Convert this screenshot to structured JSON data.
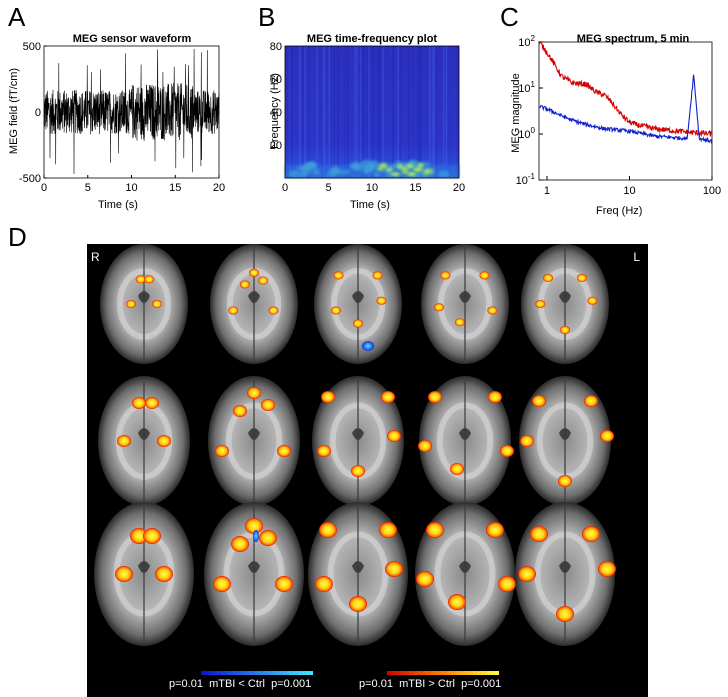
{
  "panels": {
    "A": {
      "letter": "A",
      "title": "MEG sensor waveform",
      "xlabel": "Time (s)",
      "ylabel": "MEG field (fT/cm)"
    },
    "B": {
      "letter": "B",
      "title": "MEG time-frequency plot",
      "xlabel": "Time (s)",
      "ylabel": "Frequency (Hz)"
    },
    "C": {
      "letter": "C",
      "title": "MEG spectrum, 5 min",
      "xlabel": "Freq (Hz)",
      "ylabel": "MEG magnitude"
    },
    "D": {
      "letter": "D",
      "side_right": "R",
      "side_left": "L",
      "colorbar_neg": {
        "p_low": "p=0.01",
        "label": "mTBI < Ctrl",
        "p_high": "p=0.001"
      },
      "colorbar_pos": {
        "p_low": "p=0.01",
        "label": "mTBI > Ctrl",
        "p_high": "p=0.001"
      }
    }
  },
  "chart_data": [
    {
      "type": "line",
      "title": "MEG sensor waveform",
      "xlabel": "Time (s)",
      "ylabel": "MEG field (fT/cm)",
      "xlim": [
        0,
        20
      ],
      "ylim": [
        -500,
        500
      ],
      "xticks": [
        "0",
        "5",
        "10",
        "15",
        "20"
      ],
      "yticks": [
        "-500",
        "0",
        "500"
      ],
      "series": [
        {
          "amplitude_typical": 200,
          "peak_max": 480,
          "peak_min": -470
        }
      ]
    },
    {
      "type": "heatmap",
      "title": "MEG time-frequency plot",
      "xlabel": "Time (s)",
      "ylabel": "Frequency (Hz)",
      "xlim": [
        0,
        20
      ],
      "ylim": [
        0,
        80
      ],
      "xticks": [
        "0",
        "5",
        "10",
        "15",
        "20"
      ],
      "yticks": [
        "20",
        "40",
        "60",
        "80"
      ],
      "hotspot": {
        "x_range": [
          10,
          17
        ],
        "y_range": [
          2,
          8
        ]
      }
    },
    {
      "type": "line",
      "title": "MEG spectrum, 5 min",
      "xlabel": "Freq (Hz)",
      "ylabel": "MEG magnitude",
      "xscale": "log",
      "yscale": "log",
      "xlim": [
        0.8,
        100
      ],
      "ylim": [
        0.1,
        100
      ],
      "xticks": [
        "1",
        "10",
        "100"
      ],
      "yticks": [
        "10^-1",
        "10^0",
        "10^1",
        "10^2"
      ],
      "series": [
        {
          "color": "#d40000",
          "x": [
            0.8,
            1,
            1.5,
            2,
            3,
            4,
            5,
            6,
            8,
            10,
            12,
            20,
            50,
            100
          ],
          "y": [
            100,
            60,
            18,
            13,
            12,
            8,
            7,
            5,
            2.6,
            1.8,
            1.6,
            1.3,
            1.1,
            1.0
          ]
        },
        {
          "color": "#1020c8",
          "x": [
            0.8,
            1,
            1.5,
            2,
            3,
            5,
            8,
            10,
            15,
            20,
            50,
            60,
            70,
            100
          ],
          "y": [
            4,
            3.5,
            2.5,
            2.0,
            1.6,
            1.3,
            1.2,
            1.15,
            1.0,
            0.9,
            0.8,
            20,
            0.8,
            0.7
          ]
        }
      ]
    }
  ],
  "colors": {
    "red_series": "#d40000",
    "blue_series": "#1020c8",
    "hot": "#ffff33",
    "cold": "#3b8cff"
  }
}
